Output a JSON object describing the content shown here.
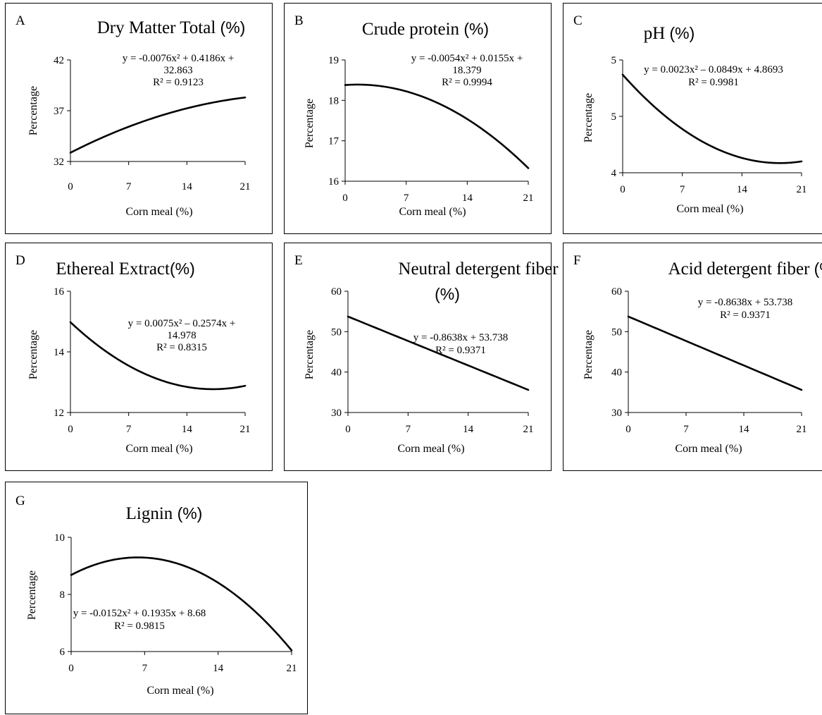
{
  "chart_data": [
    {
      "type": "line",
      "letter": "A",
      "title_parts": [
        {
          "text": "Dry Matter Total ",
          "font": "serif"
        },
        {
          "text": "(%)",
          "font": "sans"
        }
      ],
      "xlabel": "Corn meal (%)",
      "ylabel": "Percentage",
      "xticks": [
        "0",
        "7",
        "14",
        "21"
      ],
      "yticks": [
        "32",
        "37",
        "42"
      ],
      "xlim": [
        0,
        21
      ],
      "ylim": [
        32,
        42
      ],
      "equation_lines": [
        "y = -0.0076x² + 0.4186x +",
        "32.863",
        "R² = 0.9123"
      ],
      "series": [
        {
          "model": "quadratic",
          "coefficients": {
            "a": -0.0076,
            "b": 0.4186,
            "c": 32.863
          }
        }
      ]
    },
    {
      "type": "line",
      "letter": "B",
      "title_parts": [
        {
          "text": "Crude protein ",
          "font": "serif"
        },
        {
          "text": "(%)",
          "font": "sans"
        }
      ],
      "xlabel": "Corn meal (%)",
      "ylabel": "Percentage",
      "xticks": [
        "0",
        "7",
        "14",
        "21"
      ],
      "yticks": [
        "16",
        "17",
        "18",
        "19"
      ],
      "xlim": [
        0,
        21
      ],
      "ylim": [
        16,
        19
      ],
      "equation_lines": [
        "y = -0.0054x² + 0.0155x +",
        "18.379",
        "R² = 0.9994"
      ],
      "series": [
        {
          "model": "quadratic",
          "coefficients": {
            "a": -0.0054,
            "b": 0.0155,
            "c": 18.379
          }
        }
      ]
    },
    {
      "type": "line",
      "letter": "C",
      "title_parts": [
        {
          "text": "pH ",
          "font": "serif"
        },
        {
          "text": "(%)",
          "font": "sans"
        }
      ],
      "xlabel": "Corn meal (%)",
      "ylabel": "Percentage",
      "xticks": [
        "0",
        "7",
        "14",
        "21"
      ],
      "yticks": [
        "4",
        "5",
        "5"
      ],
      "xlim": [
        0,
        21
      ],
      "ylim": [
        4,
        5
      ],
      "equation_lines": [
        "y = 0.0023x² – 0.0849x + 4.8693",
        "R² = 0.9981"
      ],
      "series": [
        {
          "model": "quadratic",
          "coefficients": {
            "a": 0.0023,
            "b": -0.0849,
            "c": 4.8693
          }
        }
      ]
    },
    {
      "type": "line",
      "letter": "D",
      "title_parts": [
        {
          "text": "Ethereal Extract",
          "font": "serif"
        },
        {
          "text": "(%)",
          "font": "sans"
        }
      ],
      "xlabel": "Corn meal (%)",
      "ylabel": "Percentage",
      "xticks": [
        "0",
        "7",
        "14",
        "21"
      ],
      "yticks": [
        "12",
        "14",
        "16"
      ],
      "xlim": [
        0,
        21
      ],
      "ylim": [
        12,
        16
      ],
      "equation_lines": [
        "y = 0.0075x² – 0.2574x +",
        "14.978",
        "R² = 0.8315"
      ],
      "series": [
        {
          "model": "quadratic",
          "coefficients": {
            "a": 0.0075,
            "b": -0.2574,
            "c": 14.978
          }
        }
      ]
    },
    {
      "type": "line",
      "letter": "E",
      "title_parts": [
        {
          "text": "Neutral detergent fiber",
          "font": "serif"
        }
      ],
      "title_line2": "(%)",
      "xlabel": "Corn meal (%)",
      "ylabel": "Percentage",
      "xticks": [
        "0",
        "7",
        "14",
        "21"
      ],
      "yticks": [
        "30",
        "40",
        "50",
        "60"
      ],
      "xlim": [
        0,
        21
      ],
      "ylim": [
        30,
        60
      ],
      "equation_lines": [
        "y = -0.8638x + 53.738",
        "R² = 0.9371"
      ],
      "series": [
        {
          "model": "linear",
          "coefficients": {
            "a": 0,
            "b": -0.8638,
            "c": 53.738
          }
        }
      ]
    },
    {
      "type": "line",
      "letter": "F",
      "title_parts": [
        {
          "text": "Acid detergent fiber ",
          "font": "serif"
        },
        {
          "text": "(%)",
          "font": "sans"
        }
      ],
      "xlabel": "Corn meal (%)",
      "ylabel": "Percentage",
      "xticks": [
        "0",
        "7",
        "14",
        "21"
      ],
      "yticks": [
        "30",
        "40",
        "50",
        "60"
      ],
      "xlim": [
        0,
        21
      ],
      "ylim": [
        30,
        60
      ],
      "equation_lines": [
        "y = -0.8638x + 53.738",
        "R² = 0.9371"
      ],
      "series": [
        {
          "model": "linear",
          "coefficients": {
            "a": 0,
            "b": -0.8638,
            "c": 53.738
          }
        }
      ]
    },
    {
      "type": "line",
      "letter": "G",
      "title_parts": [
        {
          "text": "Lignin ",
          "font": "serif"
        },
        {
          "text": "(%)",
          "font": "sans"
        }
      ],
      "xlabel": "Corn meal (%)",
      "ylabel": "Percentage",
      "xticks": [
        "0",
        "7",
        "14",
        "21"
      ],
      "yticks": [
        "6",
        "8",
        "10"
      ],
      "xlim": [
        0,
        21
      ],
      "ylim": [
        6,
        10
      ],
      "equation_lines": [
        "y = -0.0152x² + 0.1935x + 8.68",
        "R² = 0.9815"
      ],
      "series": [
        {
          "model": "quadratic",
          "coefficients": {
            "a": -0.0152,
            "b": 0.1935,
            "c": 8.68
          }
        }
      ]
    }
  ]
}
